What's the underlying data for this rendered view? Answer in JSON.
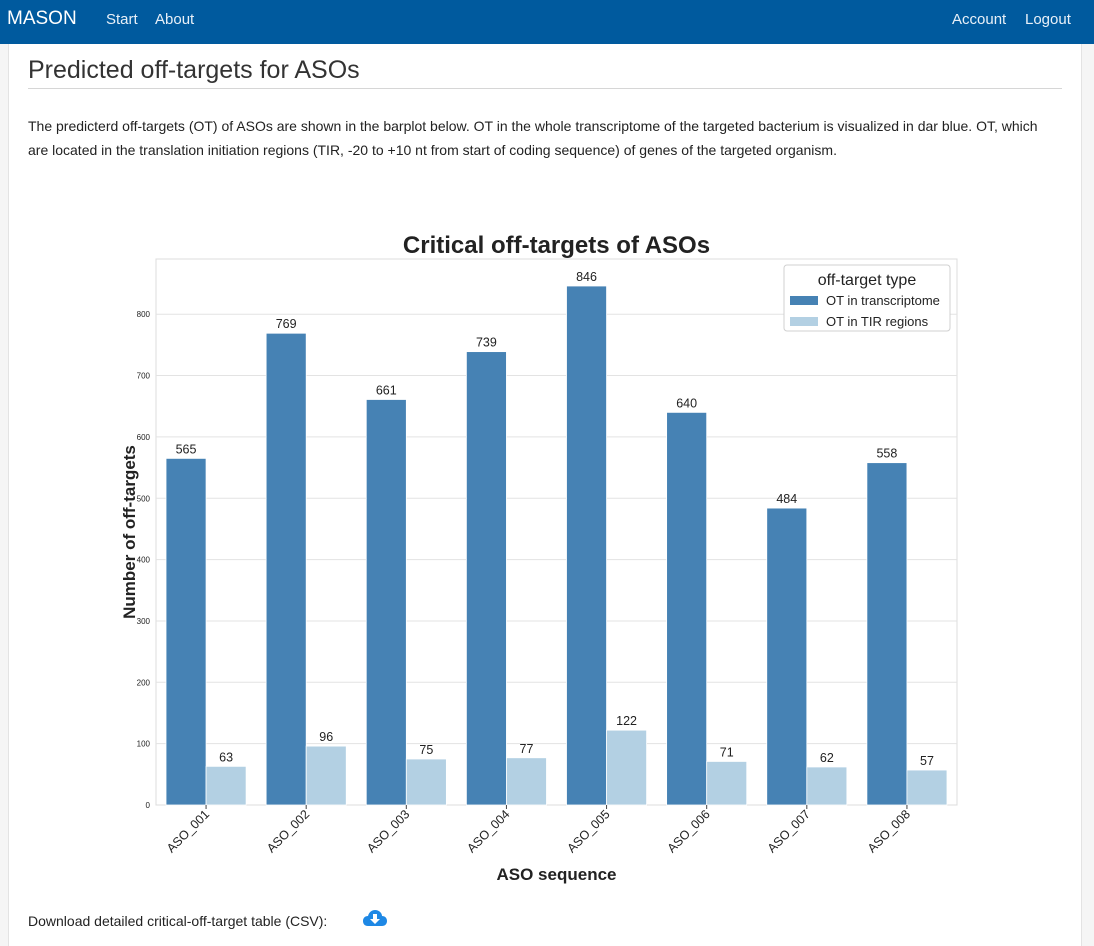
{
  "nav": {
    "brand": "MASON",
    "start": "Start",
    "about": "About",
    "account": "Account",
    "logout": "Logout"
  },
  "page": {
    "title": "Predicted off-targets for ASOs",
    "description": "The predicterd off-targets (OT) of ASOs are shown in the barplot below. OT in the whole transcriptome of the targeted bacterium is visualized in dar blue. OT, which are located in the translation initiation regions (TIR, -20 to +10 nt from start of coding sequence) of genes of the targeted organism.",
    "download_label": "Download detailed critical-off-target table (CSV):",
    "download_icon": "cloud-download-icon"
  },
  "colors": {
    "navbar": "#005a9e",
    "series_transcriptome": "#4682b4",
    "series_tir": "#b3d0e3",
    "download_icon": "#1e88e5"
  },
  "chart_data": {
    "type": "bar",
    "title": "Critical off-targets of ASOs",
    "xlabel": "ASO sequence",
    "ylabel": "Number of off-targets",
    "categories": [
      "ASO_001",
      "ASO_002",
      "ASO_003",
      "ASO_004",
      "ASO_005",
      "ASO_006",
      "ASO_007",
      "ASO_008"
    ],
    "series": [
      {
        "name": "OT in transcriptome",
        "values": [
          565,
          769,
          661,
          739,
          846,
          640,
          484,
          558
        ]
      },
      {
        "name": "OT in TIR regions",
        "values": [
          63,
          96,
          75,
          77,
          122,
          71,
          62,
          57
        ]
      }
    ],
    "yticks": [
      0,
      100,
      200,
      300,
      400,
      500,
      600,
      700,
      800
    ],
    "ylim": [
      0,
      890
    ],
    "legend_title": "off-target type",
    "legend_position": "top-right",
    "grid": "horizontal"
  }
}
